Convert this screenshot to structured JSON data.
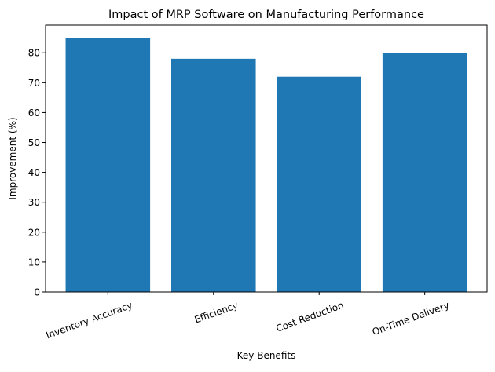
{
  "chart_data": {
    "type": "bar",
    "title": "Impact of MRP Software on Manufacturing Performance",
    "xlabel": "Key Benefits",
    "ylabel": "Improvement (%)",
    "categories": [
      "Inventory Accuracy",
      "Efficiency",
      "Cost Reduction",
      "On-Time Delivery"
    ],
    "values": [
      85,
      78,
      72,
      80
    ],
    "ylim": [
      0,
      89.25
    ],
    "yticks": [
      0,
      10,
      20,
      30,
      40,
      50,
      60,
      70,
      80
    ],
    "grid": false,
    "bar_color": "#1f77b4",
    "xtick_rotation_deg": 20
  }
}
